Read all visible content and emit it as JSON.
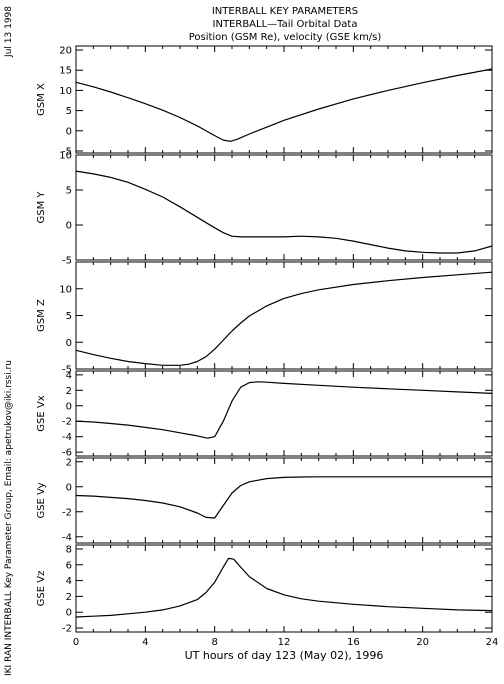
{
  "header": {
    "line1": "INTERBALL KEY PARAMETERS",
    "line2": "INTERBALL—Tail Orbital Data",
    "line3": "Position (GSM Re), velocity (GSE km/s)"
  },
  "side_date": "Jul 13 1998",
  "side_credit": "IKI RAN INTERBALL Key Parameter Group, Email: apetrukov@iki.rssi.ru",
  "colors": {
    "line": "#000000",
    "background": "#ffffff"
  },
  "chart_data": {
    "type": "line",
    "xlabel": "UT hours of day 123 (May 02), 1996",
    "xlim": [
      0,
      24
    ],
    "xticks": [
      0,
      4,
      8,
      12,
      16,
      20,
      24
    ],
    "grid": false,
    "panels": [
      {
        "ylabel": "GSM X",
        "ylim": [
          -5.5,
          21
        ],
        "yticks": [
          -5,
          0,
          5,
          10,
          15,
          20
        ],
        "x": [
          0,
          1,
          2,
          3,
          4,
          5,
          6,
          7,
          8,
          8.5,
          8.9,
          9.3,
          10,
          11,
          12,
          14,
          16,
          18,
          20,
          22,
          24
        ],
        "y": [
          12,
          10.9,
          9.6,
          8.2,
          6.7,
          5.1,
          3.3,
          1.2,
          -1.2,
          -2.3,
          -2.6,
          -2.1,
          -0.8,
          0.9,
          2.6,
          5.4,
          7.9,
          10.0,
          11.9,
          13.7,
          15.3
        ]
      },
      {
        "ylabel": "GSM Y",
        "ylim": [
          -5,
          10
        ],
        "yticks": [
          -5,
          0,
          5,
          10
        ],
        "x": [
          0,
          1,
          2,
          3,
          4,
          5,
          6,
          7,
          8,
          8.5,
          9,
          9.5,
          10,
          11,
          12,
          13,
          14,
          15,
          16,
          17,
          18,
          19,
          20,
          21,
          22,
          23,
          24
        ],
        "y": [
          7.7,
          7.3,
          6.8,
          6.1,
          5.1,
          4.0,
          2.6,
          1.1,
          -0.4,
          -1.1,
          -1.6,
          -1.7,
          -1.7,
          -1.7,
          -1.7,
          -1.6,
          -1.7,
          -1.9,
          -2.3,
          -2.8,
          -3.3,
          -3.7,
          -3.9,
          -4.0,
          -4.0,
          -3.7,
          -3.0
        ]
      },
      {
        "ylabel": "GSM Z",
        "ylim": [
          -5,
          15
        ],
        "yticks": [
          -5,
          0,
          5,
          10
        ],
        "x": [
          0,
          1,
          2,
          3,
          4,
          5,
          6,
          6.5,
          7,
          7.5,
          8,
          8.5,
          9,
          9.5,
          10,
          11,
          12,
          13,
          14,
          16,
          18,
          20,
          22,
          24
        ],
        "y": [
          -1.5,
          -2.3,
          -3.0,
          -3.6,
          -4.0,
          -4.3,
          -4.3,
          -4.1,
          -3.6,
          -2.7,
          -1.3,
          0.4,
          2.1,
          3.6,
          4.9,
          6.8,
          8.2,
          9.1,
          9.8,
          10.8,
          11.5,
          12.1,
          12.6,
          13.1
        ]
      },
      {
        "ylabel": "GSE Vx",
        "ylim": [
          -6.5,
          4.5
        ],
        "yticks": [
          -6,
          -4,
          -2,
          0,
          2,
          4
        ],
        "x": [
          0,
          1,
          2,
          3,
          4,
          5,
          6,
          7,
          7.6,
          8,
          8.5,
          9,
          9.5,
          10,
          10.5,
          11,
          12,
          14,
          16,
          18,
          20,
          22,
          24
        ],
        "y": [
          -2.0,
          -2.1,
          -2.3,
          -2.5,
          -2.8,
          -3.1,
          -3.5,
          -3.9,
          -4.2,
          -4.0,
          -2.0,
          0.6,
          2.4,
          3.0,
          3.1,
          3.05,
          2.9,
          2.65,
          2.4,
          2.2,
          2.0,
          1.8,
          1.6
        ]
      },
      {
        "ylabel": "GSE Vy",
        "ylim": [
          -4.5,
          2.3
        ],
        "yticks": [
          -4,
          -2,
          0,
          2
        ],
        "x": [
          0,
          1,
          2,
          3,
          4,
          5,
          6,
          7,
          7.5,
          8,
          8.5,
          9,
          9.5,
          10,
          11,
          12,
          13,
          14,
          16,
          18,
          20,
          22,
          24
        ],
        "y": [
          -0.7,
          -0.75,
          -0.85,
          -0.95,
          -1.1,
          -1.3,
          -1.6,
          -2.1,
          -2.45,
          -2.5,
          -1.5,
          -0.5,
          0.1,
          0.4,
          0.65,
          0.75,
          0.78,
          0.8,
          0.8,
          0.8,
          0.8,
          0.8,
          0.8
        ]
      },
      {
        "ylabel": "GSE Vz",
        "ylim": [
          -2.5,
          8.5
        ],
        "yticks": [
          -2,
          0,
          2,
          4,
          6,
          8
        ],
        "x": [
          0,
          1,
          2,
          3,
          4,
          5,
          6,
          7,
          7.5,
          8,
          8.5,
          8.8,
          9.1,
          9.5,
          10,
          11,
          12,
          13,
          14,
          16,
          18,
          20,
          22,
          24
        ],
        "y": [
          -0.6,
          -0.5,
          -0.4,
          -0.2,
          0,
          0.3,
          0.8,
          1.6,
          2.5,
          3.8,
          5.7,
          6.8,
          6.7,
          5.7,
          4.5,
          3.0,
          2.2,
          1.7,
          1.4,
          1.0,
          0.7,
          0.5,
          0.3,
          0.2
        ]
      }
    ]
  }
}
